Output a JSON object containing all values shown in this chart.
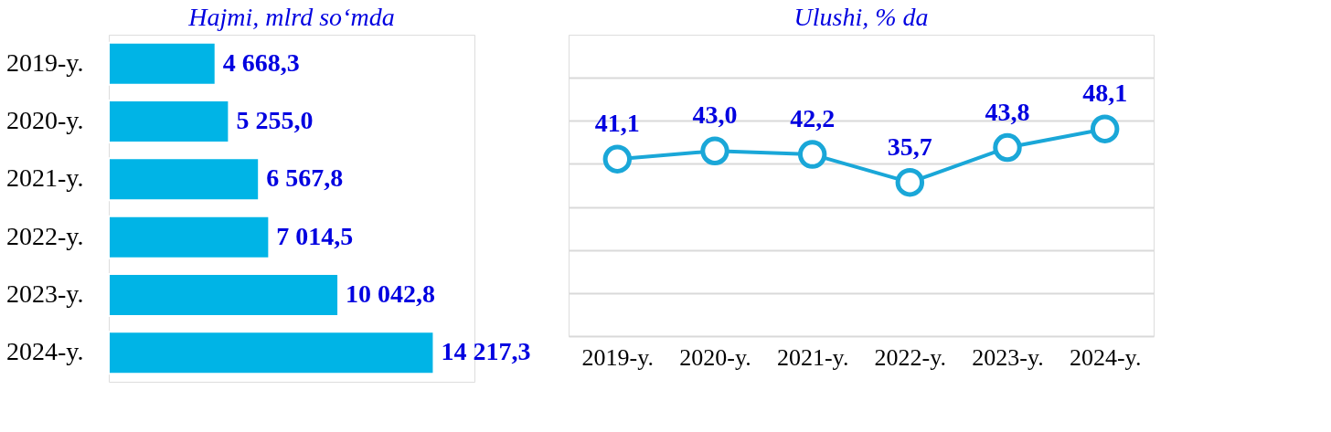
{
  "chart_data": [
    {
      "type": "bar",
      "orientation": "horizontal",
      "title": "Hajmi, mlrd so‘mda",
      "categories": [
        "2019-y.",
        "2020-y.",
        "2021-y.",
        "2022-y.",
        "2023-y.",
        "2024-y."
      ],
      "values": [
        4668.3,
        5255.0,
        6567.8,
        7014.5,
        10042.8,
        14217.3
      ],
      "value_labels": [
        "4 668,3",
        "5 255,0",
        "6 567,8",
        "7 014,5",
        "10 042,8",
        "14 217,3"
      ],
      "color": "#00b4e6",
      "xlim": [
        0,
        16000
      ],
      "tick_labels": "y"
    },
    {
      "type": "line",
      "title": "Ulushi, % da",
      "categories": [
        "2019-y.",
        "2020-y.",
        "2021-y.",
        "2022-y.",
        "2023-y.",
        "2024-y."
      ],
      "values": [
        41.1,
        43.0,
        42.2,
        35.7,
        43.8,
        48.1
      ],
      "value_labels": [
        "41,1",
        "43,0",
        "42,2",
        "35,7",
        "43,8",
        "48,1"
      ],
      "color": "#1aa7d8",
      "marker": "circle",
      "line_style": "solid",
      "ylim": [
        0,
        70
      ],
      "yticks": [
        {
          "value": 0,
          "label": null
        },
        {
          "value": 10,
          "label": null
        },
        {
          "value": 20,
          "label": null
        },
        {
          "value": 30,
          "label": null
        },
        {
          "value": 40,
          "label": null
        },
        {
          "value": 50,
          "label": null
        },
        {
          "value": 60,
          "label": null
        }
      ],
      "tick_labels": "x",
      "grid": "y"
    }
  ]
}
